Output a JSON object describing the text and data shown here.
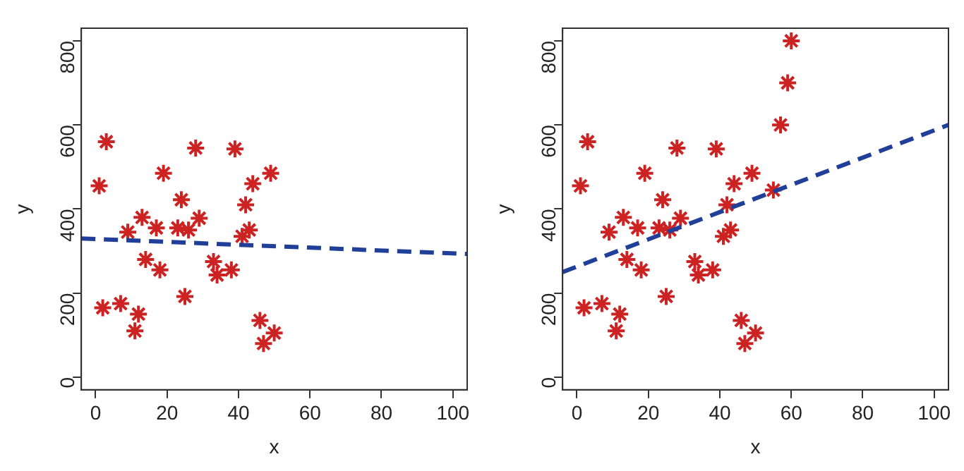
{
  "chart_data": [
    {
      "type": "scatter",
      "xlabel": "x",
      "ylabel": "y",
      "xlim": [
        -4,
        104
      ],
      "ylim": [
        -30,
        830
      ],
      "xticks": [
        0,
        20,
        40,
        60,
        80,
        100
      ],
      "yticks": [
        0,
        200,
        400,
        600,
        800
      ],
      "grid": false,
      "legend": false,
      "series": [
        {
          "color": "#cc2222",
          "marker": "cross",
          "x": [
            3,
            1,
            19,
            28,
            39,
            49,
            44,
            24,
            42,
            13,
            29,
            9,
            17,
            23,
            26,
            43,
            41,
            14,
            18,
            33,
            34,
            38,
            25,
            2,
            7,
            12,
            11,
            46,
            50,
            47
          ],
          "values": [
            560,
            455,
            485,
            545,
            543,
            485,
            460,
            422,
            410,
            380,
            378,
            345,
            355,
            355,
            350,
            350,
            335,
            280,
            255,
            275,
            243,
            255,
            192,
            165,
            175,
            150,
            110,
            135,
            105,
            80
          ]
        },
        {
          "type": "line",
          "color": "#1f3f99",
          "line_style": "dashed",
          "marker": "none",
          "x": [
            -4,
            104
          ],
          "values": [
            330,
            293
          ]
        }
      ]
    },
    {
      "type": "scatter",
      "xlabel": "x",
      "ylabel": "y",
      "xlim": [
        -4,
        104
      ],
      "ylim": [
        -30,
        830
      ],
      "xticks": [
        0,
        20,
        40,
        60,
        80,
        100
      ],
      "yticks": [
        0,
        200,
        400,
        600,
        800
      ],
      "grid": false,
      "legend": false,
      "series": [
        {
          "color": "#cc2222",
          "marker": "cross",
          "x": [
            3,
            1,
            19,
            28,
            39,
            49,
            44,
            24,
            42,
            13,
            29,
            9,
            17,
            23,
            26,
            43,
            41,
            14,
            18,
            33,
            34,
            38,
            25,
            2,
            7,
            12,
            11,
            46,
            50,
            47,
            55,
            57,
            59,
            60
          ],
          "values": [
            560,
            455,
            485,
            545,
            543,
            485,
            460,
            422,
            410,
            380,
            378,
            345,
            355,
            355,
            350,
            350,
            335,
            280,
            255,
            275,
            243,
            255,
            192,
            165,
            175,
            150,
            110,
            135,
            105,
            80,
            445,
            600,
            700,
            800
          ]
        },
        {
          "type": "line",
          "color": "#1f3f99",
          "line_style": "dashed",
          "marker": "none",
          "x": [
            -4,
            104
          ],
          "values": [
            250,
            600
          ]
        }
      ]
    }
  ]
}
